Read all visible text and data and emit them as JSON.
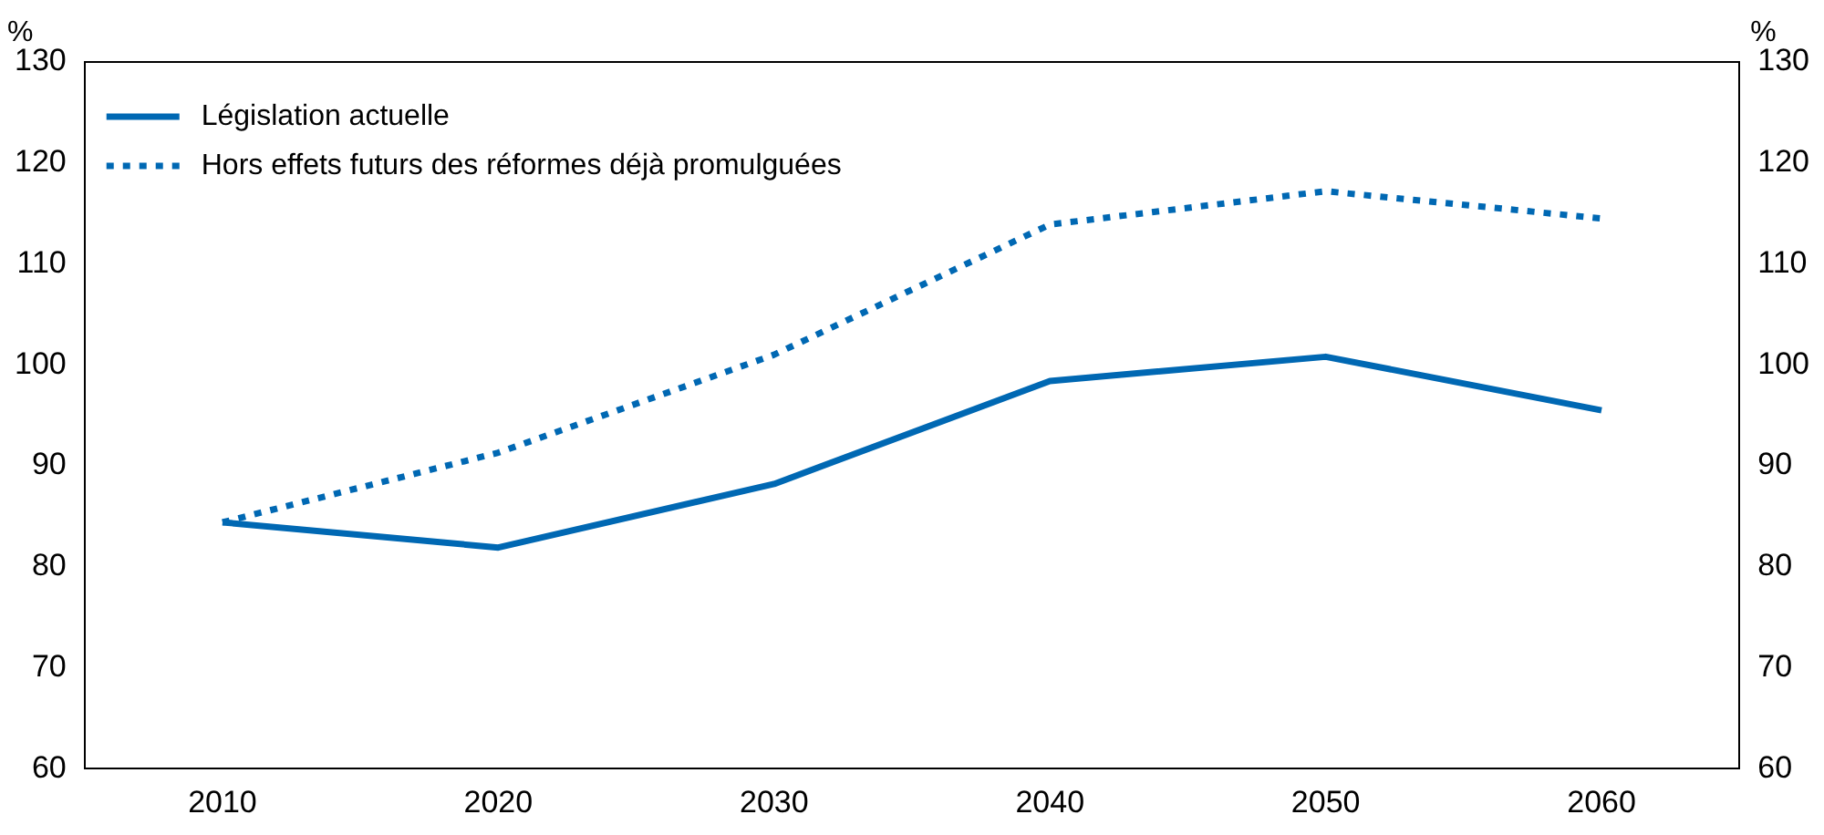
{
  "chart_data": {
    "type": "line",
    "ylabel": "%",
    "y2label": "%",
    "categories": [
      "2010",
      "2020",
      "2030",
      "2040",
      "2050",
      "2060"
    ],
    "series": [
      {
        "name": "Législation actuelle",
        "color": "#0068b3",
        "line_style": "solid",
        "values": [
          84.4,
          81.9,
          88.2,
          98.4,
          100.8,
          95.5
        ]
      },
      {
        "name": "Hors effets futurs des réformes déjà promulguées",
        "color": "#0068b3",
        "line_style": "dotted",
        "values": [
          84.4,
          91.3,
          101,
          113.9,
          117.2,
          114.5
        ]
      }
    ],
    "ylim": [
      60,
      130
    ],
    "yticks": [
      60,
      70,
      80,
      90,
      100,
      110,
      120,
      130
    ],
    "y2lim": [
      60,
      130
    ],
    "y2ticks": [
      60,
      70,
      80,
      90,
      100,
      110,
      120,
      130
    ],
    "grid": false,
    "legend": "top left",
    "marker": "none"
  }
}
